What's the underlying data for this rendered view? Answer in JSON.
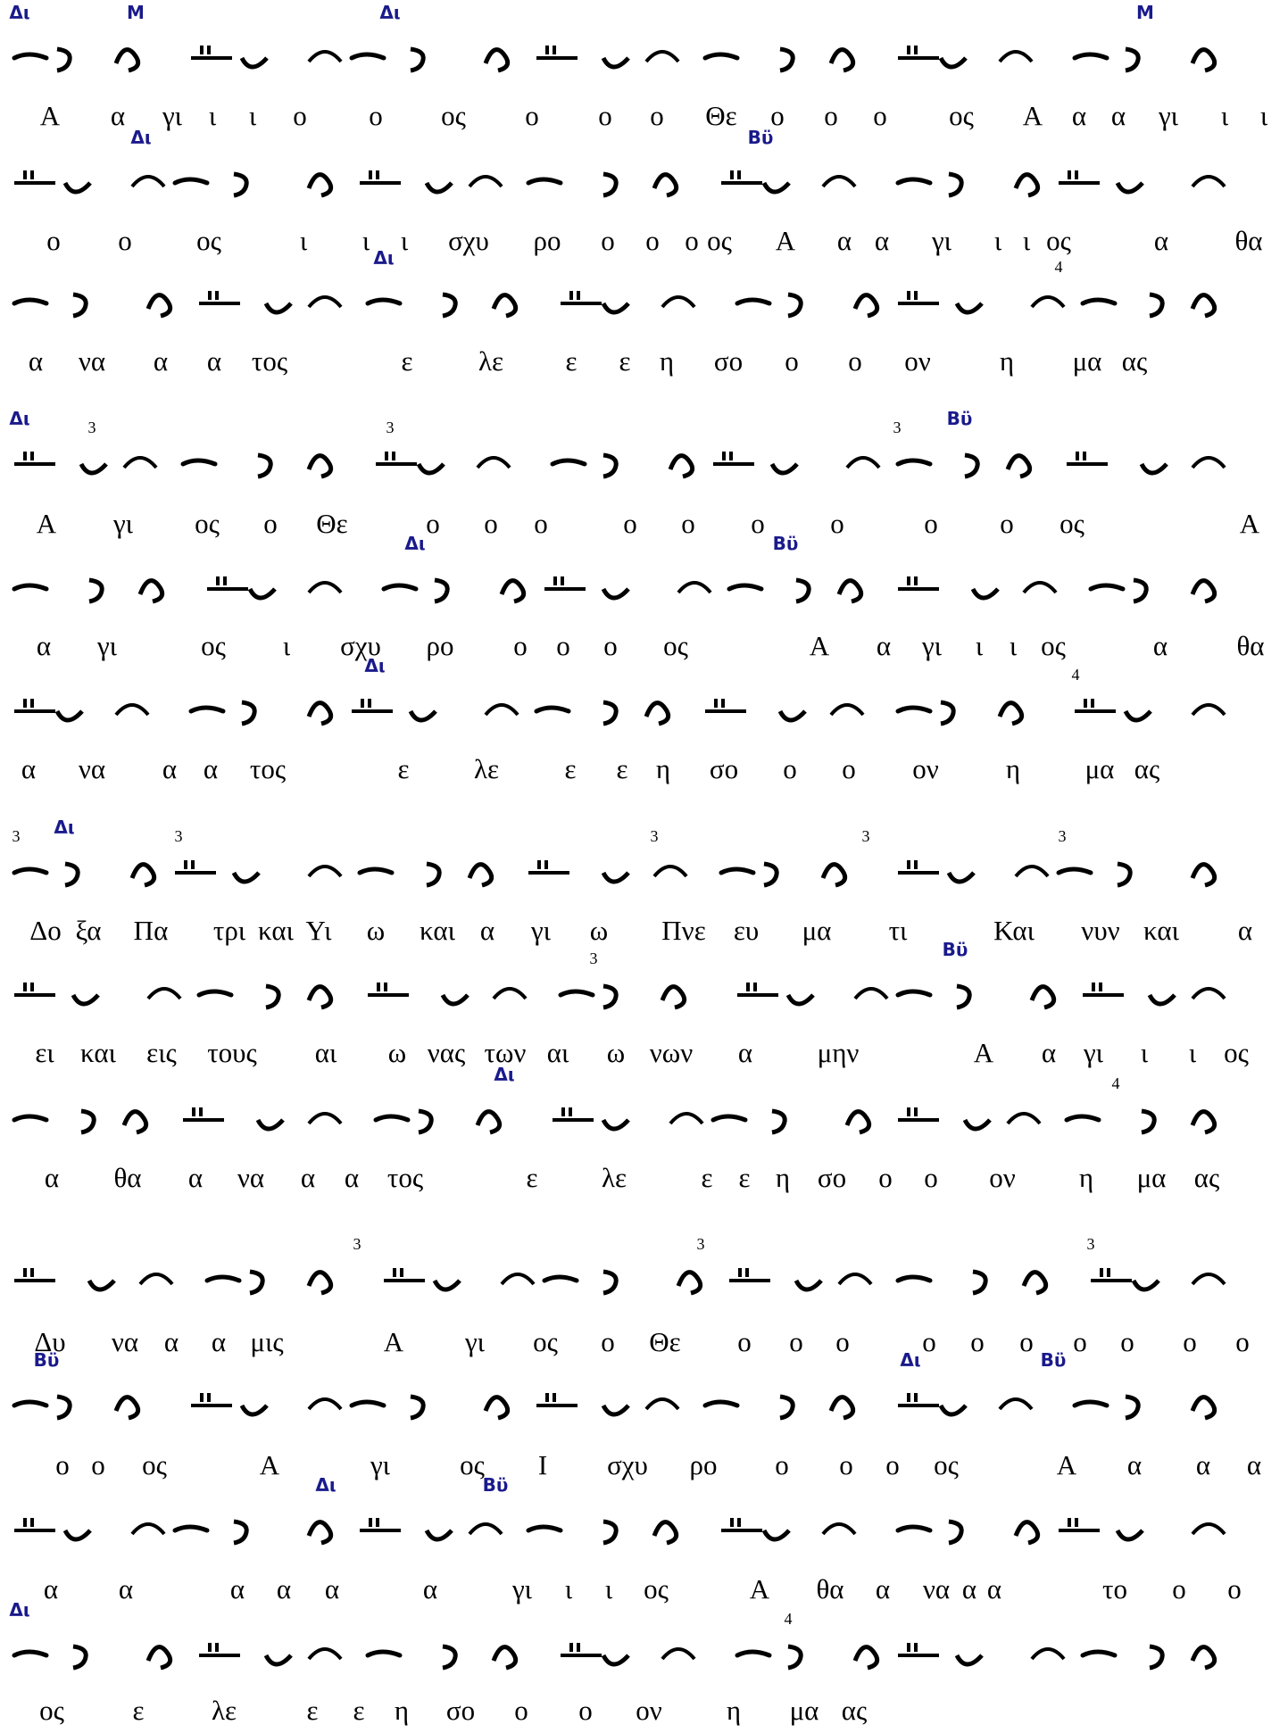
{
  "document": {
    "title": "",
    "colors": {
      "ink": "#000000",
      "martyria": "#1a1a8c"
    }
  },
  "lines": [
    {
      "mt": [
        "Δι",
        "Μ",
        "Δι",
        "Μ"
      ],
      "num": [],
      "syl": [
        "Α",
        "α",
        "γι",
        "ι",
        "ι",
        "ο",
        "ο",
        "ος",
        "ο",
        "ο",
        "ο",
        "Θε",
        "ο",
        "ο",
        "ο",
        "ος",
        "Α",
        "α",
        "α",
        "γι",
        "ι",
        "ι"
      ]
    },
    {
      "mt": [
        "Δι",
        "Βϋ"
      ],
      "num": [],
      "syl": [
        "ο",
        "ο",
        "ος",
        "ι",
        "ι",
        "ι",
        "σχυ",
        "ρο",
        "ο",
        "ο",
        "ο",
        "ος",
        "Α",
        "α",
        "α",
        "γι",
        "ι",
        "ι",
        "ος",
        "α",
        "θα"
      ]
    },
    {
      "mt": [
        "Δι"
      ],
      "num": [
        "4"
      ],
      "syl": [
        "α",
        "να",
        "α",
        "α",
        "τος",
        "ε",
        "λε",
        "ε",
        "ε",
        "η",
        "σο",
        "ο",
        "ο",
        "ον",
        "η",
        "μα",
        "ας"
      ]
    },
    {
      "mt": [
        "Δι",
        "Βϋ"
      ],
      "num": [
        "3",
        "3",
        "3"
      ],
      "syl": [
        "Α",
        "γι",
        "ος",
        "ο",
        "Θε",
        "ο",
        "ο",
        "ο",
        "ο",
        "ο",
        "ο",
        "ο",
        "ο",
        "ο",
        "ος",
        "Α"
      ]
    },
    {
      "mt": [
        "Δι",
        "Βϋ"
      ],
      "num": [],
      "syl": [
        "α",
        "γι",
        "ος",
        "ι",
        "σχυ",
        "ρο",
        "ο",
        "ο",
        "ο",
        "ος",
        "Α",
        "α",
        "γι",
        "ι",
        "ι",
        "ος",
        "α",
        "θα"
      ]
    },
    {
      "mt": [
        "Δι"
      ],
      "num": [
        "4"
      ],
      "syl": [
        "α",
        "να",
        "α",
        "α",
        "τος",
        "ε",
        "λε",
        "ε",
        "ε",
        "η",
        "σο",
        "ο",
        "ο",
        "ον",
        "η",
        "μα",
        "ας"
      ]
    },
    {
      "mt": [
        "Δι"
      ],
      "num": [
        "3",
        "3",
        "3",
        "3",
        "3"
      ],
      "syl": [
        "Δο",
        "ξα",
        "Πα",
        "τρι",
        "και",
        "Υι",
        "ω",
        "και",
        "α",
        "γι",
        "ω",
        "Πνε",
        "ευ",
        "μα",
        "τι",
        "Και",
        "νυν",
        "και",
        "α"
      ]
    },
    {
      "mt": [
        "Βϋ"
      ],
      "num": [
        "3"
      ],
      "syl": [
        "ει",
        "και",
        "εις",
        "τους",
        "αι",
        "ω",
        "νας",
        "των",
        "αι",
        "ω",
        "νων",
        "α",
        "μην",
        "Α",
        "α",
        "γι",
        "ι",
        "ι",
        "ος"
      ]
    },
    {
      "mt": [
        "Δι"
      ],
      "num": [
        "4"
      ],
      "syl": [
        "α",
        "θα",
        "α",
        "να",
        "α",
        "α",
        "τος",
        "ε",
        "λε",
        "ε",
        "ε",
        "η",
        "σο",
        "ο",
        "ο",
        "ον",
        "η",
        "μα",
        "ας"
      ]
    },
    {
      "mt": [],
      "num": [
        "3",
        "3",
        "3"
      ],
      "syl": [
        "Δυ",
        "να",
        "α",
        "α",
        "μις",
        "Α",
        "γι",
        "ος",
        "ο",
        "Θε",
        "ο",
        "ο",
        "ο",
        "ο",
        "ο",
        "ο",
        "ο",
        "ο",
        "ο",
        "ο"
      ]
    },
    {
      "mt": [
        "Βϋ",
        "Δι",
        "Βϋ"
      ],
      "num": [],
      "syl": [
        "ο",
        "ο",
        "ος",
        "Α",
        "γι",
        "ος",
        "Ι",
        "σχυ",
        "ρο",
        "ο",
        "ο",
        "ο",
        "ος",
        "Α",
        "α",
        "α",
        "α"
      ]
    },
    {
      "mt": [
        "Δι",
        "Βϋ"
      ],
      "num": [],
      "syl": [
        "α",
        "α",
        "α",
        "α",
        "α",
        "α",
        "γι",
        "ι",
        "ι",
        "ος",
        "Α",
        "θα",
        "α",
        "να",
        "α",
        "α",
        "το",
        "ο",
        "ο"
      ]
    },
    {
      "mt": [
        "Δι"
      ],
      "num": [
        "4"
      ],
      "syl": [
        "ος",
        "ε",
        "λε",
        "ε",
        "ε",
        "η",
        "σο",
        "ο",
        "ο",
        "ον",
        "η",
        "μα",
        "ας"
      ]
    }
  ]
}
